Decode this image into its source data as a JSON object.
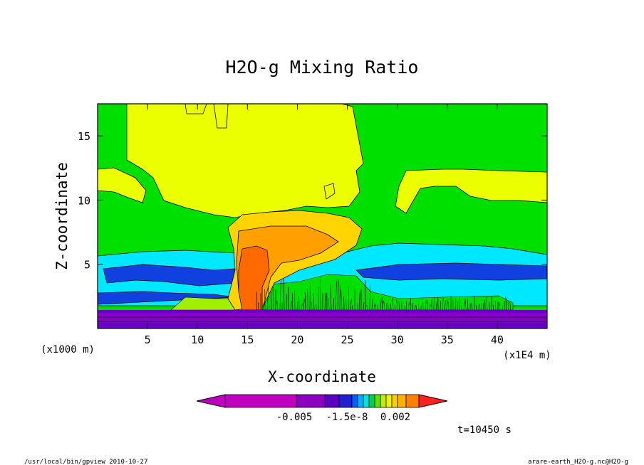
{
  "chart_data": {
    "type": "heatmap",
    "title": "H2O-g Mixing Ratio",
    "xlabel": "X-coordinate",
    "ylabel": "Z-coordinate",
    "x_unit_left": "(x1000 m)",
    "x_unit_right": "(x1E4 m)",
    "xlim": [
      0,
      45
    ],
    "ylim": [
      0,
      17.5
    ],
    "x_ticks": [
      "5",
      "10",
      "15",
      "20",
      "25",
      "30",
      "35",
      "40"
    ],
    "x_tick_values": [
      5,
      10,
      15,
      20,
      25,
      30,
      35,
      40
    ],
    "y_ticks": [
      "5",
      "10",
      "15"
    ],
    "y_tick_values": [
      5,
      10,
      15
    ],
    "colorbar_labels": [
      "-0.005",
      "-1.5e-8",
      "0.002"
    ],
    "time_label": "t=10450 s",
    "colorbar_colors": [
      "#c000c0",
      "#c000c0",
      "#8c00c0",
      "#5a00c0",
      "#2020d0",
      "#0060ff",
      "#00b0ff",
      "#00e0e0",
      "#00d050",
      "#60e000",
      "#c0f000",
      "#f0f000",
      "#ffd000",
      "#ffb000",
      "#ff8000",
      "#ff5000",
      "#ff2020"
    ],
    "field_colors": {
      "purple": "#8800cc",
      "violet": "#6a00c8",
      "darkblue": "#1040e0",
      "cyan": "#00e8ff",
      "green": "#00e000",
      "lime": "#a0f000",
      "yellow": "#ecff00",
      "gold": "#ffd400",
      "orange": "#ffa000",
      "red": "#ff6a00"
    },
    "grid": false
  },
  "footer": {
    "left": "/usr/local/bin/gpview  2010-10-27",
    "right": "arare-earth_H2O-g.nc@H2O-g"
  }
}
